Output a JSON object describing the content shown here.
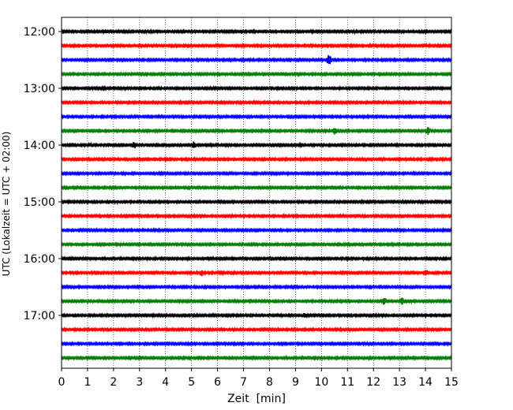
{
  "chart_data": {
    "type": "line",
    "title": "",
    "xlabel": "Zeit  [min]",
    "ylabel": "UTC (Lokalzeit = UTC + 02:00)",
    "xlim": [
      0,
      15
    ],
    "x_ticks": [
      0,
      1,
      2,
      3,
      4,
      5,
      6,
      7,
      8,
      9,
      10,
      11,
      12,
      13,
      14,
      15
    ],
    "x_tick_labels": [
      "0",
      "1",
      "2",
      "3",
      "4",
      "5",
      "6",
      "7",
      "8",
      "9",
      "10",
      "11",
      "12",
      "13",
      "14",
      "15"
    ],
    "y_tick_labels": [
      "12:00",
      "13:00",
      "14:00",
      "15:00",
      "16:00",
      "17:00"
    ],
    "vertical_grid": true,
    "line_colors": [
      "#000000",
      "#ff0000",
      "#0000ff",
      "#008000"
    ],
    "traces": [
      {
        "start": "12:00",
        "color": "#000000",
        "events": [
          {
            "t": 1.7,
            "amp": 0.35
          },
          {
            "t": 3.3,
            "amp": 0.2
          },
          {
            "t": 11.3,
            "amp": 0.22
          }
        ]
      },
      {
        "start": "12:15",
        "color": "#ff0000",
        "events": [
          {
            "t": 14.0,
            "amp": 0.2
          }
        ]
      },
      {
        "start": "12:30",
        "color": "#0000ff",
        "events": [
          {
            "t": 9.6,
            "amp": 0.25
          },
          {
            "t": 10.3,
            "amp": 0.8
          }
        ]
      },
      {
        "start": "12:45",
        "color": "#008000",
        "events": [
          {
            "t": 9.1,
            "amp": 0.2
          }
        ]
      },
      {
        "start": "13:00",
        "color": "#000000",
        "events": [
          {
            "t": 1.6,
            "amp": 0.2
          },
          {
            "t": 2.5,
            "amp": 0.25
          },
          {
            "t": 9.0,
            "amp": 0.22
          }
        ]
      },
      {
        "start": "13:15",
        "color": "#ff0000",
        "events": []
      },
      {
        "start": "13:30",
        "color": "#0000ff",
        "events": []
      },
      {
        "start": "13:45",
        "color": "#008000",
        "events": [
          {
            "t": 10.0,
            "amp": 0.25
          },
          {
            "t": 10.5,
            "amp": 0.55
          },
          {
            "t": 13.8,
            "amp": 0.25
          },
          {
            "t": 14.1,
            "amp": 0.55
          }
        ]
      },
      {
        "start": "14:00",
        "color": "#000000",
        "events": [
          {
            "t": 1.1,
            "amp": 0.25
          },
          {
            "t": 1.9,
            "amp": 0.3
          },
          {
            "t": 2.8,
            "amp": 0.5
          },
          {
            "t": 4.1,
            "amp": 0.25
          },
          {
            "t": 5.1,
            "amp": 0.5
          },
          {
            "t": 9.2,
            "amp": 0.2
          },
          {
            "t": 14.6,
            "amp": 0.22
          }
        ]
      },
      {
        "start": "14:15",
        "color": "#ff0000",
        "events": [
          {
            "t": 3.1,
            "amp": 0.22
          }
        ]
      },
      {
        "start": "14:30",
        "color": "#0000ff",
        "events": []
      },
      {
        "start": "14:45",
        "color": "#008000",
        "events": []
      },
      {
        "start": "15:00",
        "color": "#000000",
        "events": [
          {
            "t": 2.1,
            "amp": 0.25
          }
        ]
      },
      {
        "start": "15:15",
        "color": "#ff0000",
        "events": []
      },
      {
        "start": "15:30",
        "color": "#0000ff",
        "events": []
      },
      {
        "start": "15:45",
        "color": "#008000",
        "events": []
      },
      {
        "start": "16:00",
        "color": "#000000",
        "events": []
      },
      {
        "start": "16:15",
        "color": "#ff0000",
        "events": [
          {
            "t": 5.4,
            "amp": 0.45
          },
          {
            "t": 14.0,
            "amp": 0.45
          }
        ]
      },
      {
        "start": "16:30",
        "color": "#0000ff",
        "events": []
      },
      {
        "start": "16:45",
        "color": "#008000",
        "events": [
          {
            "t": 12.4,
            "amp": 0.6
          },
          {
            "t": 13.1,
            "amp": 0.55
          },
          {
            "t": 13.5,
            "amp": 0.25
          }
        ]
      },
      {
        "start": "17:00",
        "color": "#000000",
        "events": [
          {
            "t": 9.35,
            "amp": 0.35
          }
        ]
      },
      {
        "start": "17:15",
        "color": "#ff0000",
        "events": []
      },
      {
        "start": "17:30",
        "color": "#0000ff",
        "events": []
      },
      {
        "start": "17:45",
        "color": "#008000",
        "events": []
      }
    ]
  }
}
